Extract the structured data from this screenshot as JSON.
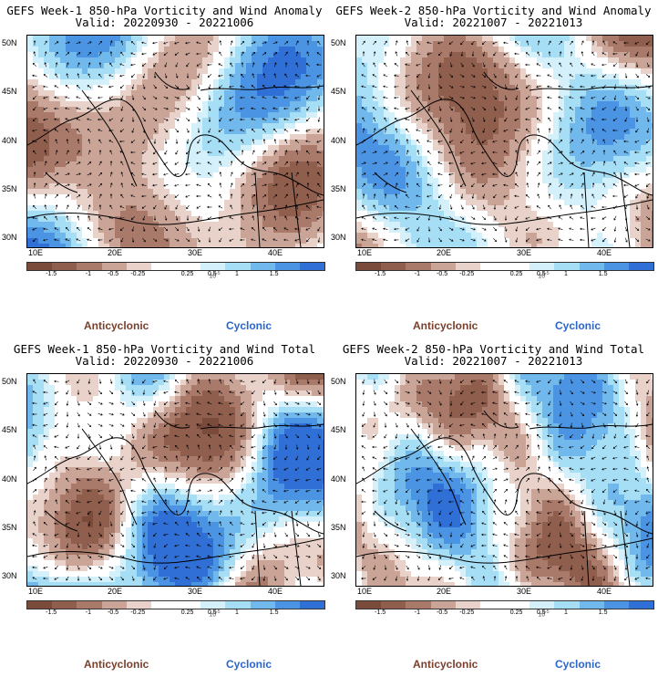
{
  "colors": {
    "scale": [
      "#7a4b3a",
      "#8f5e4c",
      "#a9796a",
      "#c9a497",
      "#e8d2c9",
      "#ffffff",
      "#ffffff",
      "#d4f0fb",
      "#a6def5",
      "#71b8ed",
      "#4a94e3",
      "#2f6fd6"
    ],
    "anticyclonic": "#7b3f2b",
    "cyclonic": "#2a66cc"
  },
  "colorbar": {
    "ticks": [
      "-1.5",
      "-1",
      "-0.5",
      "-0.25",
      "0.25",
      "0.5",
      "1",
      "1.5"
    ],
    "tick_slots": [
      1,
      2.5,
      3.5,
      4.5,
      6.5,
      7.5,
      8.5,
      10
    ],
    "unit_label": "10",
    "unit_exp": "-5"
  },
  "axes": {
    "lat_ticks": [
      "50N",
      "45N",
      "40N",
      "35N",
      "30N"
    ],
    "lon_ticks": [
      "10E",
      "20E",
      "30E",
      "40E"
    ]
  },
  "legend": {
    "anticyclonic": "Anticyclonic",
    "cyclonic": "Cyclonic"
  },
  "panels": [
    {
      "title": "GEFS Week-1 850-hPa Vorticity and Wind Anomaly",
      "valid": "Valid: 20220930 - 20221006",
      "kind": "anomaly",
      "week": 1
    },
    {
      "title": "GEFS Week-2 850-hPa Vorticity and Wind Anomaly",
      "valid": "Valid: 20221007 - 20221013",
      "kind": "anomaly",
      "week": 2
    },
    {
      "title": "GEFS Week-1 850-hPa Vorticity and Wind Total",
      "valid": "Valid: 20220930 - 20221006",
      "kind": "total",
      "week": 1
    },
    {
      "title": "GEFS Week-2 850-hPa Vorticity and Wind Total",
      "valid": "Valid: 20221007 - 20221013",
      "kind": "total",
      "week": 2
    }
  ]
}
